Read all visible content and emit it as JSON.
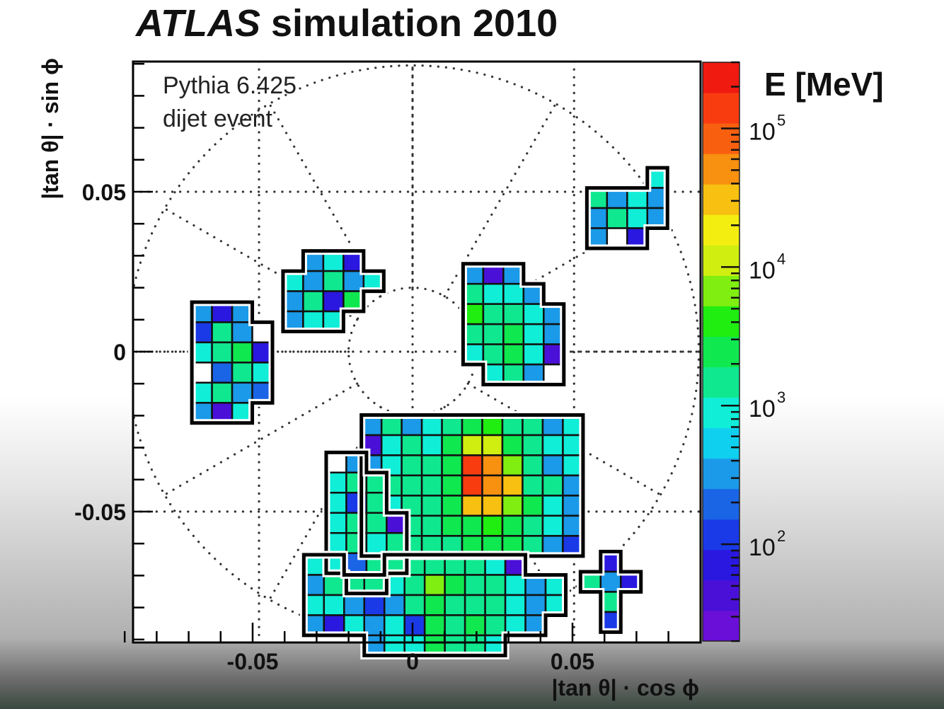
{
  "chart_data": {
    "type": "heatmap",
    "title_italic": "ATLAS",
    "title_rest": " simulation 2010",
    "annotation": [
      "Pythia 6.425",
      "dijet event"
    ],
    "xlabel": "|tan θ|  · cos ϕ",
    "ylabel": "|tan θ|  · sin ϕ",
    "xlim": [
      -0.09,
      0.09
    ],
    "ylim": [
      -0.09,
      0.09
    ],
    "xticks": [
      {
        "v": -0.05,
        "label": "-0.05"
      },
      {
        "v": 0,
        "label": "0"
      },
      {
        "v": 0.05,
        "label": "0.05"
      }
    ],
    "yticks": [
      {
        "v": 0.05,
        "label": "0.05"
      },
      {
        "v": 0,
        "label": "0"
      },
      {
        "v": -0.05,
        "label": "-0.05"
      }
    ],
    "colorbar": {
      "label": "E [MeV]",
      "scale": "log",
      "range": [
        20,
        300000
      ],
      "ticks": [
        {
          "v": 100,
          "label": "10",
          "exp": "2"
        },
        {
          "v": 1000,
          "label": "10",
          "exp": "3"
        },
        {
          "v": 10000,
          "label": "10",
          "exp": "4"
        },
        {
          "v": 100000,
          "label": "10",
          "exp": "5"
        }
      ],
      "colors": [
        "#6a0fd8",
        "#4a10d8",
        "#2a18e0",
        "#1a3ae8",
        "#1a64e6",
        "#1a9ae8",
        "#10d0f0",
        "#10eed8",
        "#10e890",
        "#10e850",
        "#20ee10",
        "#80ee10",
        "#d0ee10",
        "#f4ee10",
        "#f8c010",
        "#f89010",
        "#f86010",
        "#f83c10",
        "#f01a10"
      ]
    },
    "grid": "polar-dotted",
    "clusters": [
      {
        "name": "left-cluster",
        "x0": -0.069,
        "y0": 0.0155,
        "cell": 0.0063,
        "rows": [
          [
            300,
            60,
            300,
            null,
            null
          ],
          [
            150,
            1500,
            300,
            0,
            null
          ],
          [
            900,
            1200,
            3000,
            80,
            null
          ],
          [
            0,
            200,
            1500,
            900,
            null
          ],
          [
            800,
            1500,
            300,
            200,
            null
          ],
          [
            300,
            40,
            800,
            null,
            null
          ]
        ]
      },
      {
        "name": "upper-left-cluster",
        "x0": -0.0405,
        "y0": 0.0315,
        "cell": 0.0063,
        "rows": [
          [
            null,
            300,
            900,
            60,
            null
          ],
          [
            800,
            300,
            1500,
            300,
            800
          ],
          [
            300,
            1800,
            60,
            3000,
            null
          ],
          [
            300,
            900,
            800,
            null,
            null
          ]
        ]
      },
      {
        "name": "upper-right-cluster",
        "x0": 0.0545,
        "y0": 0.0575,
        "cell": 0.0063,
        "rows": [
          [
            null,
            null,
            null,
            800,
            null
          ],
          [
            1200,
            300,
            800,
            300,
            null
          ],
          [
            300,
            1800,
            800,
            300,
            null
          ],
          [
            300,
            0,
            60,
            null,
            null
          ]
        ]
      },
      {
        "name": "central-right-cluster",
        "x0": 0.0095,
        "y0": 0.0275,
        "cell": 0.0063,
        "rows": [
          [
            null,
            300,
            40,
            300,
            null,
            null,
            null,
            null
          ],
          [
            null,
            1500,
            800,
            800,
            300,
            null,
            null,
            null
          ],
          [
            null,
            3500,
            1800,
            1800,
            900,
            300,
            null,
            null
          ],
          [
            null,
            1200,
            1800,
            2500,
            900,
            300,
            null,
            null
          ],
          [
            null,
            800,
            1200,
            2500,
            900,
            40,
            null,
            null
          ],
          [
            null,
            null,
            800,
            1500,
            300,
            0,
            null,
            null
          ]
        ]
      },
      {
        "name": "central-cluster",
        "x0": -0.016,
        "y0": -0.0135,
        "cell": 0.0063,
        "rows": [
          [
            null,
            null,
            null,
            null,
            null,
            null,
            null,
            null,
            null,
            null,
            null,
            null,
            null,
            null
          ],
          [
            300,
            1500,
            300,
            800,
            1500,
            3000,
            5000,
            1500,
            1500,
            300,
            800,
            null,
            null,
            null
          ],
          [
            40,
            800,
            1500,
            900,
            3000,
            10000,
            12000,
            3000,
            1800,
            900,
            900,
            null,
            null,
            null
          ],
          [
            300,
            900,
            1500,
            1500,
            3000,
            120000,
            40000,
            8000,
            1800,
            300,
            800,
            null,
            null,
            null
          ],
          [
            800,
            1500,
            1500,
            1200,
            3000,
            150000,
            60000,
            35000,
            1800,
            1500,
            300,
            null,
            null,
            null
          ],
          [
            900,
            800,
            1500,
            1200,
            3000,
            35000,
            30000,
            8000,
            3000,
            900,
            300,
            null,
            null,
            null
          ],
          [
            800,
            60,
            1200,
            1800,
            3000,
            3000,
            5000,
            3000,
            1500,
            800,
            300,
            null,
            null,
            null
          ],
          [
            800,
            1500,
            1500,
            1800,
            1800,
            3000,
            3000,
            3000,
            1500,
            300,
            150,
            null,
            null,
            null
          ]
        ]
      },
      {
        "name": "left-lower-cluster",
        "x0": -0.027,
        "y0": -0.0315,
        "cell": 0.0063,
        "rows": [
          [
            0,
            300,
            null,
            null
          ],
          [
            800,
            1500,
            1500,
            null
          ],
          [
            800,
            100,
            1500,
            null
          ],
          [
            800,
            1500,
            1200,
            40
          ],
          [
            900,
            1500,
            900,
            1500
          ],
          [
            40,
            200,
            1500,
            800
          ],
          [
            null,
            100,
            60,
            null
          ]
        ]
      },
      {
        "name": "bottom-cluster",
        "x0": -0.034,
        "y0": -0.0635,
        "cell": 0.0063,
        "rows": [
          [
            900,
            900,
            null,
            null,
            1200,
            1500,
            1500,
            1500,
            1500,
            800,
            40,
            null,
            null,
            null
          ],
          [
            300,
            1500,
            1500,
            1200,
            800,
            1500,
            6000,
            3000,
            1800,
            1200,
            800,
            300,
            800,
            null
          ],
          [
            800,
            900,
            300,
            100,
            300,
            1500,
            3000,
            1800,
            1800,
            1200,
            900,
            300,
            800,
            null
          ],
          [
            300,
            60,
            900,
            300,
            800,
            100,
            3000,
            1800,
            3000,
            1200,
            800,
            300,
            null,
            null
          ],
          [
            null,
            null,
            null,
            300,
            900,
            800,
            2500,
            1800,
            1500,
            900,
            null,
            null,
            null,
            null
          ]
        ]
      },
      {
        "name": "right-lower-cluster",
        "x0": 0.0525,
        "y0": -0.0625,
        "cell": 0.0063,
        "rows": [
          [
            null,
            60,
            null,
            null
          ],
          [
            1200,
            300,
            80,
            null
          ],
          [
            null,
            1200,
            null,
            null
          ],
          [
            null,
            100,
            null,
            null
          ]
        ]
      }
    ]
  }
}
